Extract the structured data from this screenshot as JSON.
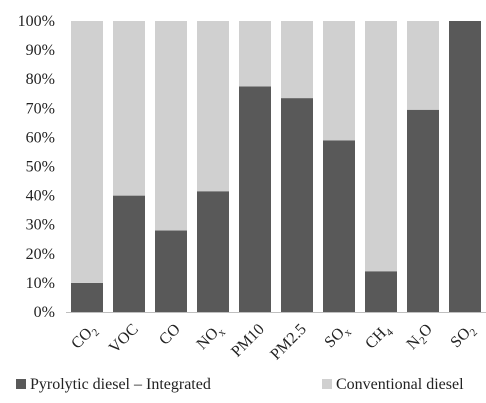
{
  "chart_data": {
    "type": "bar",
    "stacked": true,
    "percent_stacked": true,
    "categories": [
      {
        "base": "CO",
        "sub": "2",
        "label": "CO2"
      },
      {
        "base": "VOC",
        "sub": "",
        "label": "VOC"
      },
      {
        "base": "CO",
        "sub": "",
        "label": "CO"
      },
      {
        "base": "NO",
        "sub": "x",
        "label": "NOx"
      },
      {
        "base": "PM10",
        "sub": "",
        "label": "PM10"
      },
      {
        "base": "PM2.5",
        "sub": "",
        "label": "PM2.5"
      },
      {
        "base": "SO",
        "sub": "x",
        "label": "SOx"
      },
      {
        "base": "CH",
        "sub": "4",
        "label": "CH4"
      },
      {
        "base": "N",
        "sub": "2",
        "tail": "O",
        "label": "N2O"
      },
      {
        "base": "SO",
        "sub": "2",
        "label": "SO2"
      }
    ],
    "series": [
      {
        "name": "Pyrolytic diesel –  Integrated",
        "color": "#595959",
        "values": [
          10,
          40,
          28,
          41.5,
          77.5,
          73.5,
          59,
          14,
          69.5,
          100
        ]
      },
      {
        "name": "Conventional diesel",
        "color": "#d0d0d0",
        "values": [
          90,
          60,
          72,
          58.5,
          22.5,
          26.5,
          41,
          86,
          30.5,
          0
        ]
      }
    ],
    "y_ticks": [
      "0%",
      "10%",
      "20%",
      "30%",
      "40%",
      "50%",
      "60%",
      "70%",
      "80%",
      "90%",
      "100%"
    ],
    "ylim": [
      0,
      100
    ],
    "legend_position": "bottom",
    "grid": false
  }
}
